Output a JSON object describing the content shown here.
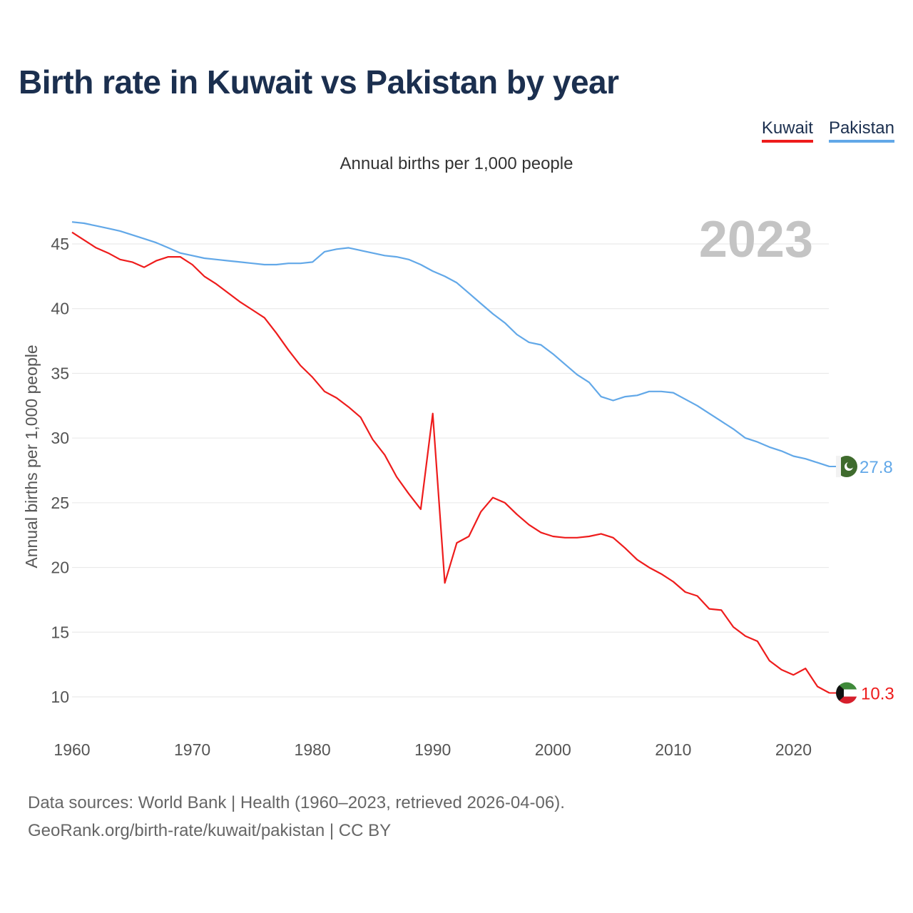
{
  "page": {
    "title": "Birth rate in Kuwait vs Pakistan by year",
    "subtitle": "Annual births per 1,000 people",
    "footer_line1": "Data sources: World Bank | Health (1960–2023, retrieved 2026-04-06).",
    "footer_line2": "GeoRank.org/birth-rate/kuwait/pakistan | CC BY"
  },
  "legend": [
    {
      "label": "Kuwait",
      "color": "#ee1c1c"
    },
    {
      "label": "Pakistan",
      "color": "#62a8e8"
    }
  ],
  "chart_data": {
    "type": "line",
    "title": "Birth rate in Kuwait vs Pakistan by year",
    "ylabel": "Annual births per 1,000 people",
    "xlabel": "",
    "year_label": "2023",
    "xlim": [
      1960,
      2023
    ],
    "ylim": [
      7.5,
      48
    ],
    "yticks": [
      10,
      15,
      20,
      25,
      30,
      35,
      40,
      45
    ],
    "xticks": [
      1960,
      1970,
      1980,
      1990,
      2000,
      2010,
      2020
    ],
    "grid": true,
    "x": [
      1960,
      1961,
      1962,
      1963,
      1964,
      1965,
      1966,
      1967,
      1968,
      1969,
      1970,
      1971,
      1972,
      1973,
      1974,
      1975,
      1976,
      1977,
      1978,
      1979,
      1980,
      1981,
      1982,
      1983,
      1984,
      1985,
      1986,
      1987,
      1988,
      1989,
      1990,
      1991,
      1992,
      1993,
      1994,
      1995,
      1996,
      1997,
      1998,
      1999,
      2000,
      2001,
      2002,
      2003,
      2004,
      2005,
      2006,
      2007,
      2008,
      2009,
      2010,
      2011,
      2012,
      2013,
      2014,
      2015,
      2016,
      2017,
      2018,
      2019,
      2020,
      2021,
      2022,
      2023
    ],
    "series": [
      {
        "name": "Kuwait",
        "color": "#ee1c1c",
        "end_label": "10.3",
        "values": [
          45.9,
          45.3,
          44.7,
          44.3,
          43.8,
          43.6,
          43.2,
          43.7,
          44.0,
          44.0,
          43.4,
          42.5,
          41.9,
          41.2,
          40.5,
          39.9,
          39.3,
          38.1,
          36.8,
          35.6,
          34.7,
          33.6,
          33.1,
          32.4,
          31.6,
          29.9,
          28.7,
          27.0,
          25.7,
          24.5,
          31.9,
          18.8,
          21.9,
          22.4,
          24.3,
          25.4,
          25.0,
          24.1,
          23.3,
          22.7,
          22.4,
          22.3,
          22.3,
          22.4,
          22.6,
          22.3,
          21.5,
          20.6,
          20.0,
          19.5,
          18.9,
          18.1,
          17.8,
          16.8,
          16.7,
          15.4,
          14.7,
          14.3,
          12.8,
          12.1,
          11.7,
          12.2,
          10.8,
          10.3
        ]
      },
      {
        "name": "Pakistan",
        "color": "#62a8e8",
        "end_label": "27.8",
        "values": [
          46.7,
          46.6,
          46.4,
          46.2,
          46.0,
          45.7,
          45.4,
          45.1,
          44.7,
          44.3,
          44.1,
          43.9,
          43.8,
          43.7,
          43.6,
          43.5,
          43.4,
          43.4,
          43.5,
          43.5,
          43.6,
          44.4,
          44.6,
          44.7,
          44.5,
          44.3,
          44.1,
          44.0,
          43.8,
          43.4,
          42.9,
          42.5,
          42.0,
          41.2,
          40.4,
          39.6,
          38.9,
          38.0,
          37.4,
          37.2,
          36.5,
          35.7,
          34.9,
          34.3,
          33.2,
          32.9,
          33.2,
          33.3,
          33.6,
          33.6,
          33.5,
          33.0,
          32.5,
          31.9,
          31.3,
          30.7,
          30.0,
          29.7,
          29.3,
          29.0,
          28.6,
          28.4,
          28.1,
          27.8
        ]
      }
    ]
  }
}
